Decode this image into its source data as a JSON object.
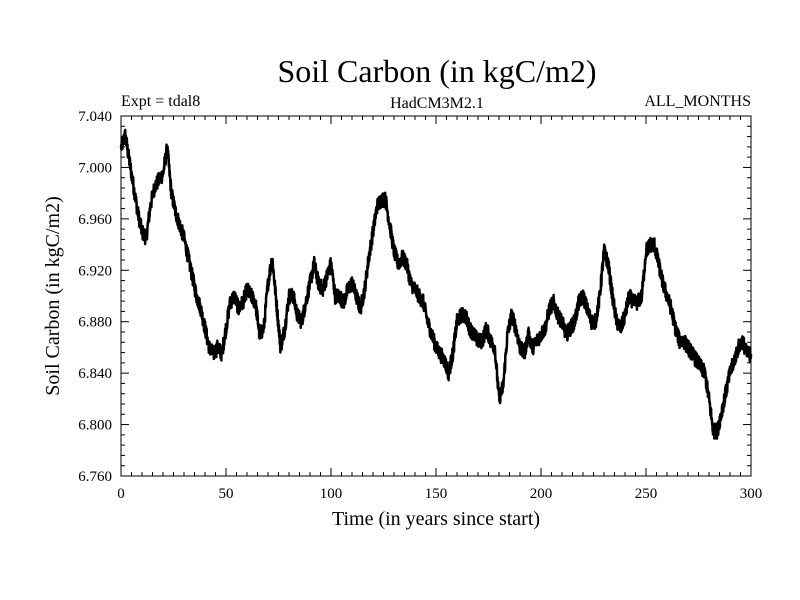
{
  "chart_data": {
    "type": "line",
    "title": "Soil Carbon (in kgC/m2)",
    "subtitle_left": "Expt = tdal8",
    "subtitle_center": "HadCM3M2.1",
    "subtitle_right": "ALL_MONTHS",
    "xlabel": "Time (in years since start)",
    "ylabel": "Soil Carbon (in kgC/m2)",
    "xlim": [
      0,
      300
    ],
    "ylim": [
      6.76,
      7.04
    ],
    "xticks": [
      0,
      50,
      100,
      150,
      200,
      250,
      300
    ],
    "xtick_labels": [
      "0",
      "50",
      "100",
      "150",
      "200",
      "250",
      "300"
    ],
    "yticks": [
      6.76,
      6.8,
      6.84,
      6.88,
      6.92,
      6.96,
      7.0,
      7.04
    ],
    "ytick_labels": [
      "6.760",
      "6.800",
      "6.840",
      "6.880",
      "6.920",
      "6.960",
      "7.000",
      "7.040"
    ],
    "grid": false,
    "line_color": "#000000",
    "series": [
      {
        "name": "Soil Carbon",
        "x": [
          0,
          2,
          4,
          6,
          8,
          10,
          12,
          14,
          16,
          18,
          20,
          22,
          24,
          26,
          28,
          30,
          32,
          34,
          36,
          38,
          40,
          42,
          44,
          46,
          48,
          50,
          52,
          54,
          56,
          58,
          60,
          62,
          64,
          66,
          68,
          70,
          72,
          74,
          76,
          78,
          80,
          82,
          84,
          86,
          88,
          90,
          92,
          94,
          96,
          98,
          100,
          102,
          104,
          106,
          108,
          110,
          112,
          114,
          116,
          118,
          120,
          122,
          124,
          126,
          128,
          130,
          132,
          134,
          136,
          138,
          140,
          142,
          144,
          146,
          148,
          150,
          152,
          154,
          156,
          158,
          160,
          162,
          164,
          166,
          168,
          170,
          172,
          174,
          176,
          178,
          180,
          182,
          184,
          186,
          188,
          190,
          192,
          194,
          196,
          198,
          200,
          202,
          204,
          206,
          208,
          210,
          212,
          214,
          216,
          218,
          220,
          222,
          224,
          226,
          228,
          230,
          232,
          234,
          236,
          238,
          240,
          242,
          244,
          246,
          248,
          250,
          252,
          254,
          256,
          258,
          260,
          262,
          264,
          266,
          268,
          270,
          272,
          274,
          276,
          278,
          280,
          282,
          284,
          286,
          288,
          290,
          292,
          294,
          296,
          298,
          300
        ],
        "values": [
          7.015,
          7.025,
          7.005,
          6.985,
          6.965,
          6.95,
          6.945,
          6.97,
          6.985,
          6.99,
          6.995,
          7.015,
          6.98,
          6.965,
          6.955,
          6.945,
          6.93,
          6.915,
          6.9,
          6.89,
          6.875,
          6.86,
          6.855,
          6.86,
          6.855,
          6.875,
          6.895,
          6.9,
          6.89,
          6.895,
          6.905,
          6.9,
          6.895,
          6.87,
          6.875,
          6.91,
          6.93,
          6.895,
          6.86,
          6.875,
          6.9,
          6.9,
          6.885,
          6.88,
          6.895,
          6.91,
          6.925,
          6.91,
          6.905,
          6.915,
          6.925,
          6.9,
          6.9,
          6.895,
          6.905,
          6.91,
          6.9,
          6.89,
          6.905,
          6.93,
          6.95,
          6.97,
          6.975,
          6.975,
          6.955,
          6.935,
          6.925,
          6.93,
          6.925,
          6.91,
          6.905,
          6.9,
          6.895,
          6.88,
          6.87,
          6.86,
          6.855,
          6.85,
          6.84,
          6.855,
          6.88,
          6.885,
          6.885,
          6.875,
          6.87,
          6.865,
          6.865,
          6.875,
          6.865,
          6.86,
          6.82,
          6.83,
          6.87,
          6.885,
          6.875,
          6.86,
          6.855,
          6.87,
          6.86,
          6.865,
          6.87,
          6.875,
          6.89,
          6.895,
          6.885,
          6.88,
          6.87,
          6.875,
          6.88,
          6.895,
          6.9,
          6.89,
          6.88,
          6.88,
          6.9,
          6.935,
          6.925,
          6.9,
          6.88,
          6.875,
          6.885,
          6.9,
          6.895,
          6.895,
          6.9,
          6.935,
          6.94,
          6.94,
          6.925,
          6.91,
          6.9,
          6.89,
          6.875,
          6.865,
          6.865,
          6.86,
          6.855,
          6.85,
          6.845,
          6.84,
          6.82,
          6.795,
          6.795,
          6.81,
          6.825,
          6.84,
          6.85,
          6.86,
          6.865,
          6.855,
          6.855
        ]
      }
    ]
  }
}
